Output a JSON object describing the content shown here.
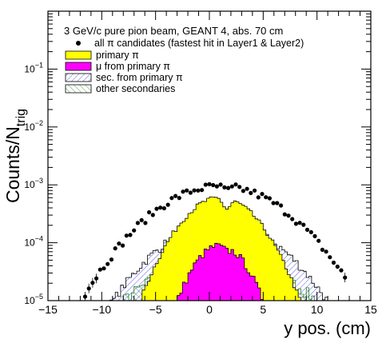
{
  "chart_data": {
    "type": "histogram",
    "title": "3 GeV/c pure pion beam, GEANT 4, abs. 70 cm",
    "xlabel": "y pos. (cm)",
    "ylabel_main": "Counts/N",
    "ylabel_sub": "trig",
    "xlim": [
      -15,
      15
    ],
    "ylim": [
      1e-05,
      1.0
    ],
    "yscale": "log",
    "grid": false,
    "legend_position": "top-left",
    "x_ticks": [
      "−15",
      "−10",
      "−5",
      "0",
      "5",
      "10",
      "15"
    ],
    "y_ticks": [
      {
        "base": "10",
        "exp": "−5"
      },
      {
        "base": "10",
        "exp": "−4"
      },
      {
        "base": "10",
        "exp": "−3"
      },
      {
        "base": "10",
        "exp": "−2"
      },
      {
        "base": "10",
        "exp": "−1"
      }
    ],
    "legend": [
      {
        "key": "all",
        "label": "all π candidates (fastest hit in Layer1 & Layer2)",
        "style": "marker"
      },
      {
        "key": "primary",
        "label": "primary π",
        "style": "fill",
        "color": "#ffff00"
      },
      {
        "key": "mu",
        "label": "μ from primary π",
        "style": "fill",
        "color": "#ff00ff"
      },
      {
        "key": "sec",
        "label": "sec. from primary π",
        "style": "hatch-blue"
      },
      {
        "key": "other",
        "label": "other secondaries",
        "style": "hatch-green"
      }
    ],
    "series": [
      {
        "key": "all",
        "name": "all π candidates (fastest hit in Layer1 & Layer2)",
        "curve": {
          "mu": 1.0,
          "sigma": 4.3,
          "peak": 0.00095,
          "floor": 1e-05,
          "dip_depth": 0.15
        }
      },
      {
        "key": "primary",
        "name": "primary π",
        "curve": {
          "mu": 1.0,
          "sigma": 2.6,
          "peak": 0.0006,
          "floor": 1e-05,
          "dip_depth": 0.35
        }
      },
      {
        "key": "mu",
        "name": "μ from primary π",
        "curve": {
          "mu": 1.0,
          "sigma": 1.9,
          "peak": 9e-05,
          "floor": 1e-05,
          "dip_depth": 0.15
        }
      },
      {
        "key": "sec",
        "name": "sec. from primary π",
        "curve": {
          "mu": 1.0,
          "sigma": 4.0,
          "peak": 0.00022,
          "floor": 1e-05,
          "dip_depth": 0.1
        }
      },
      {
        "key": "other",
        "name": "other secondaries",
        "curve": {
          "mu": 1.0,
          "sigma": 5.0,
          "peak": 5e-05,
          "floor": 1e-05,
          "dip_depth": 0.0
        }
      }
    ],
    "colors": {
      "primary": "#ffff00",
      "mu": "#ff00ff",
      "sec_hatch": "#3333cc",
      "other_hatch": "#228822",
      "marker": "#000000"
    }
  }
}
